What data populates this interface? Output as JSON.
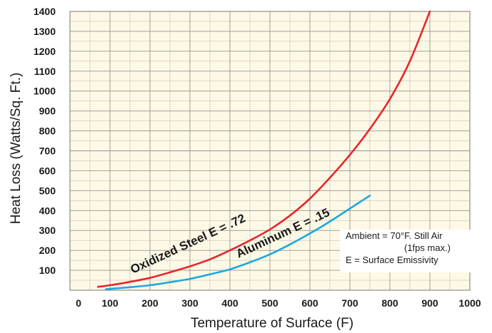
{
  "chart_data": {
    "type": "line",
    "xlabel": "Temperature of Surface (F)",
    "ylabel": "Heat Loss (Watts/Sq. Ft.)",
    "xlim": [
      0,
      1000
    ],
    "ylim": [
      0,
      1400
    ],
    "x_ticks": [
      0,
      100,
      200,
      300,
      400,
      500,
      600,
      700,
      800,
      900,
      1000
    ],
    "y_ticks": [
      100,
      200,
      300,
      400,
      500,
      600,
      700,
      800,
      900,
      1000,
      1100,
      1200,
      1300,
      1400
    ],
    "grid": true,
    "background_color": "#fdf9e6",
    "grid_color": "#8a8a8a",
    "series": [
      {
        "name": "Oxidized Steel E = .72",
        "color": "#e8262c",
        "points": [
          [
            70,
            17
          ],
          [
            100,
            25
          ],
          [
            150,
            42
          ],
          [
            200,
            62
          ],
          [
            250,
            90
          ],
          [
            300,
            120
          ],
          [
            350,
            155
          ],
          [
            400,
            200
          ],
          [
            450,
            250
          ],
          [
            500,
            305
          ],
          [
            550,
            375
          ],
          [
            600,
            460
          ],
          [
            650,
            565
          ],
          [
            700,
            680
          ],
          [
            750,
            810
          ],
          [
            800,
            960
          ],
          [
            850,
            1150
          ],
          [
            900,
            1400
          ]
        ]
      },
      {
        "name": "Aluminum  E = .15",
        "color": "#1ea8e0",
        "points": [
          [
            90,
            5
          ],
          [
            150,
            15
          ],
          [
            200,
            25
          ],
          [
            250,
            40
          ],
          [
            300,
            57
          ],
          [
            350,
            80
          ],
          [
            400,
            105
          ],
          [
            450,
            140
          ],
          [
            500,
            180
          ],
          [
            550,
            230
          ],
          [
            600,
            285
          ],
          [
            650,
            345
          ],
          [
            700,
            410
          ],
          [
            750,
            475
          ]
        ]
      }
    ],
    "annotations": {
      "line1": "Ambient = 70°F. Still Air",
      "line2": "(1fps max.)",
      "line3": "E = Surface Emissivity"
    }
  }
}
